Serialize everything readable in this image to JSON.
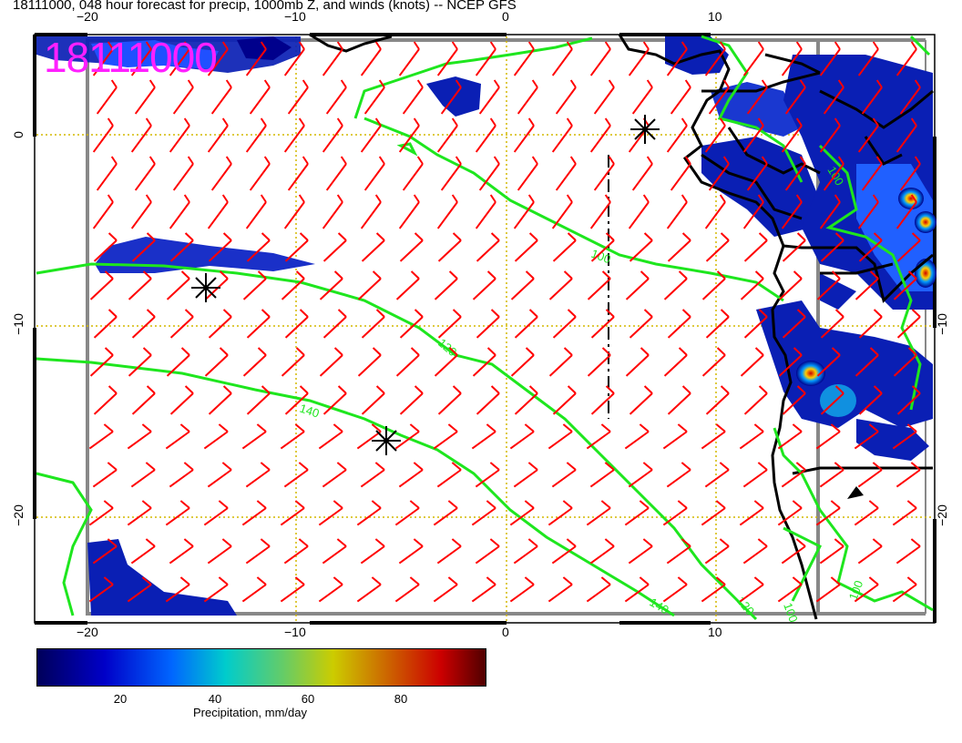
{
  "title": "18111000, 048 hour forecast for precip, 1000mb Z, and winds (knots) -- NCEP GFS",
  "stamp": "18111000",
  "axes": {
    "top_ticks": [
      "−20",
      "−10",
      "0",
      "10"
    ],
    "bottom_ticks": [
      "−20",
      "−10",
      "0",
      "10"
    ],
    "left_ticks": [
      "0",
      "−10",
      "−20"
    ],
    "right_ticks": [
      "−10",
      "−20"
    ]
  },
  "contours": {
    "color": "#1ee61e",
    "labels": [
      "100",
      "120",
      "140",
      "140",
      "120",
      "100",
      "100",
      "100"
    ]
  },
  "storm_markers": 4,
  "colorbar": {
    "ticks": [
      "20",
      "40",
      "60",
      "80"
    ],
    "label": "Precipitation, mm/day",
    "colors": [
      "#00005a",
      "#0000c8",
      "#0066ff",
      "#00cccc",
      "#66cc66",
      "#cccc00",
      "#cc6600",
      "#cc0000",
      "#500000"
    ]
  },
  "colors": {
    "wind_barbs": "#ff0000",
    "coastline": "#000000",
    "gridlines": "#d4b800",
    "border": "#888888"
  }
}
